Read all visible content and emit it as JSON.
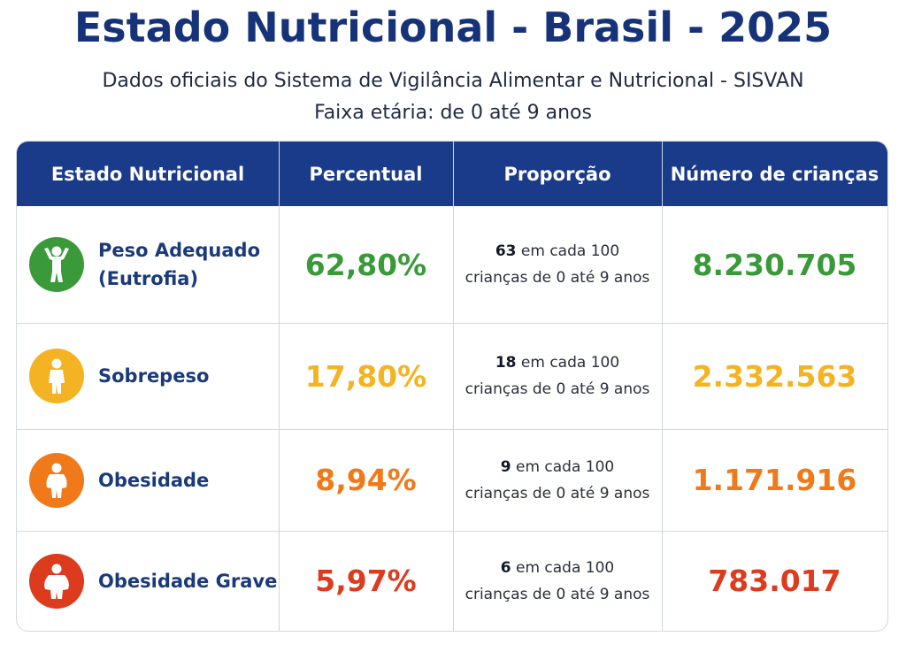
{
  "header": {
    "title": "Estado Nutricional - Brasil - 2025",
    "subtitle_line1": "Dados oficiais do Sistema de Vigilância Alimentar e Nutricional - SISVAN",
    "subtitle_line2": "Faixa etária: de 0 até 9 anos"
  },
  "table": {
    "columns": [
      "Estado Nutricional",
      "Percentual",
      "Proporção",
      "Número de crianças"
    ],
    "rows": [
      {
        "status_line1": "Peso Adequado",
        "status_line2": "(Eutrofia)",
        "percent": "62,80%",
        "prop_count": "63",
        "prop_rest": " em cada 100",
        "prop_line2": "crianças de 0 até 9 anos",
        "number": "8.230.705",
        "color": "#3a9a3a",
        "icon": "child-arms-up-icon"
      },
      {
        "status_line1": "Sobrepeso",
        "status_line2": "",
        "percent": "17,80%",
        "prop_count": "18",
        "prop_rest": " em cada 100",
        "prop_line2": "crianças de 0 até 9 anos",
        "number": "2.332.563",
        "color": "#f4b323",
        "icon": "child-icon"
      },
      {
        "status_line1": "Obesidade",
        "status_line2": "",
        "percent": "8,94%",
        "prop_count": "9",
        "prop_rest": " em cada 100",
        "prop_line2": "crianças de 0 até 9 anos",
        "number": "1.171.916",
        "color": "#f07a1a",
        "icon": "child-heavy-icon"
      },
      {
        "status_line1": "Obesidade Grave",
        "status_line2": "",
        "percent": "5,97%",
        "prop_count": "6",
        "prop_rest": " em cada 100",
        "prop_line2": "crianças de 0 até 9 anos",
        "number": "783.017",
        "color": "#dc3b1e",
        "icon": "child-very-heavy-icon"
      }
    ]
  }
}
